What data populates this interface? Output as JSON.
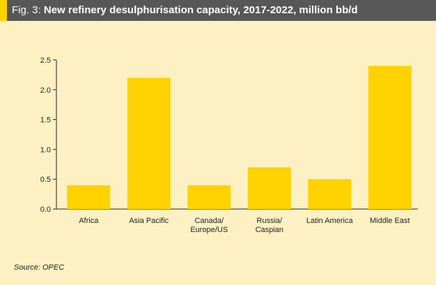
{
  "figure": {
    "title_prefix": "Fig. 3:",
    "title": "New refinery desulphurisation capacity, 2017-2022, million bb/d",
    "source": "Source: OPEC"
  },
  "colors": {
    "title_bar": "#575757",
    "accent": "#ffd200",
    "panel_background": "#fdf1c4",
    "bar": "#ffd200",
    "axis": "#222222"
  },
  "chart_data": {
    "type": "bar",
    "categories": [
      [
        "Africa"
      ],
      [
        "Asia Pacific"
      ],
      [
        "Canada/",
        "Europe/US"
      ],
      [
        "Russia/",
        "Caspian"
      ],
      [
        "Latin America"
      ],
      [
        "Middle East"
      ]
    ],
    "values": [
      0.4,
      2.2,
      0.4,
      0.7,
      0.5,
      2.4
    ],
    "ylim": [
      0,
      2.5
    ],
    "yticks": [
      "0.0",
      "0.5",
      "1.0",
      "1.5",
      "2.0",
      "2.5"
    ],
    "xlabel": "",
    "ylabel": "",
    "grid": false,
    "legend": "none"
  }
}
